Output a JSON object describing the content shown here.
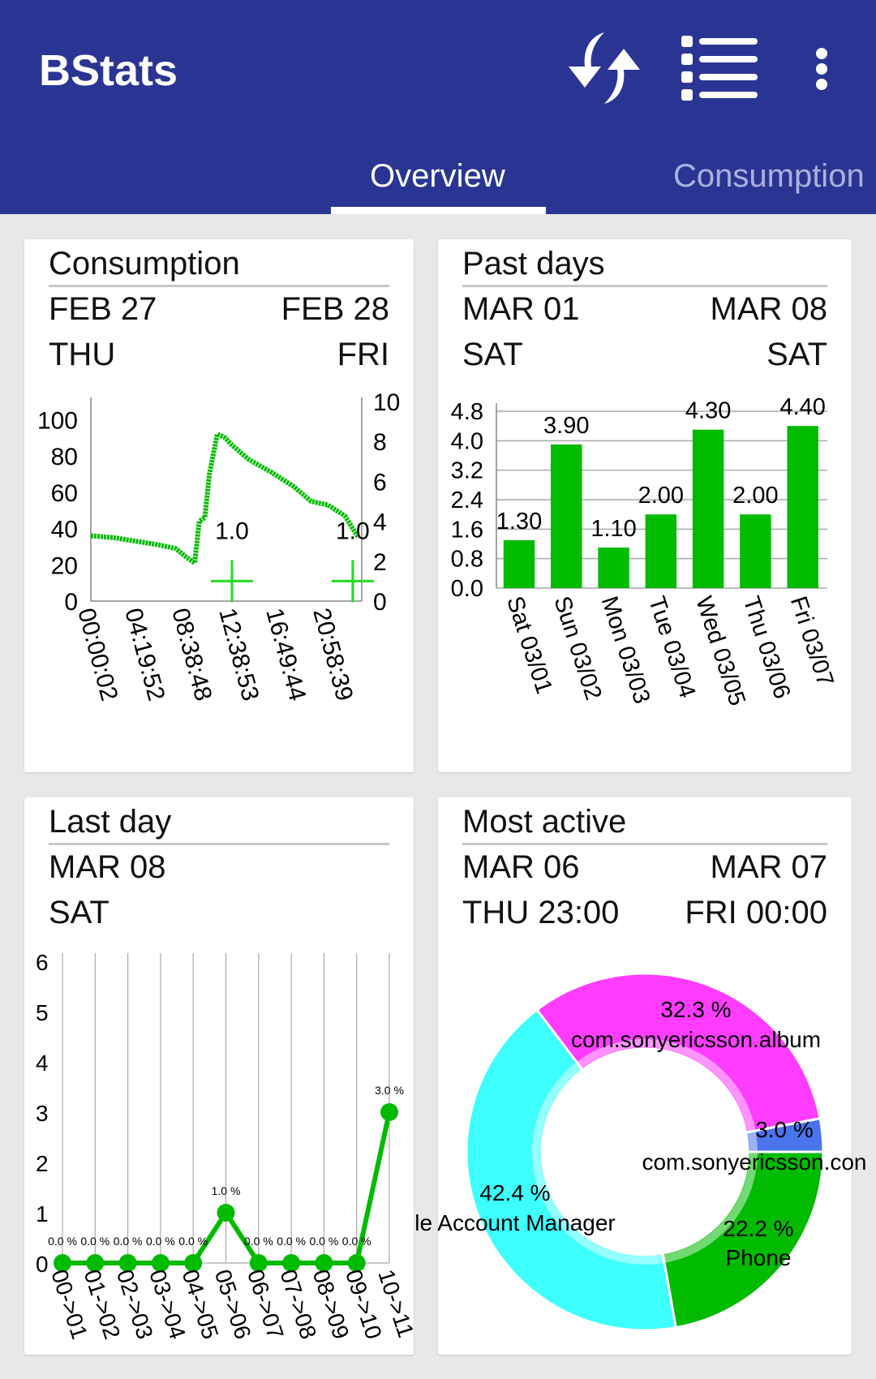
{
  "app": {
    "title": "BStats"
  },
  "toolbar": {
    "icons": [
      "sync-icon",
      "list-icon",
      "more-vert-icon"
    ]
  },
  "tabs": [
    {
      "label": "Overview",
      "active": true
    },
    {
      "label": "Consumption",
      "active": false
    }
  ],
  "colors": {
    "appbar": "#2a3593",
    "green": "#00bb00",
    "cyan": "#3dfffc",
    "magenta": "#ff3cff",
    "blue": "#4a74ee"
  },
  "cards": {
    "consumption": {
      "title": "Consumption",
      "start_date": "FEB 27",
      "end_date": "FEB 28",
      "start_day": "THU",
      "end_day": "FRI"
    },
    "past_days": {
      "title": "Past days",
      "start_date": "MAR 01",
      "end_date": "MAR 08",
      "start_day": "SAT",
      "end_day": "SAT"
    },
    "last_day": {
      "title": "Last day",
      "date": "MAR 08",
      "day": "SAT"
    },
    "most_active": {
      "title": "Most active",
      "start_date": "MAR 06",
      "end_date": "MAR 07",
      "start_time": "THU 23:00",
      "end_time": "FRI 00:00"
    }
  },
  "chart_data": [
    {
      "type": "line",
      "left_ylim": [
        0,
        110
      ],
      "left_yticks": [
        "0",
        "20",
        "40",
        "60",
        "80",
        "100"
      ],
      "right_ylim": [
        0,
        10
      ],
      "right_yticks": [
        "0",
        "2",
        "4",
        "6",
        "8",
        "10"
      ],
      "xticks": [
        "00:00:02",
        "04:19:52",
        "08:38:48",
        "12:38:53",
        "16:49:44",
        "20:58:39"
      ],
      "x_hours": [
        0,
        2,
        4,
        6,
        7.5,
        8.5,
        9.2,
        9.6,
        10.1,
        10.5,
        11.2,
        11.9,
        12.5,
        14,
        16,
        18,
        19.5,
        21,
        22.5,
        23.7
      ],
      "battery": [
        36,
        35,
        33,
        31,
        29,
        24,
        21,
        44,
        46,
        70,
        92,
        90,
        86,
        78,
        71,
        63,
        55,
        53,
        47,
        35
      ],
      "markers": [
        {
          "x_hour": 12.5,
          "value": 1.0,
          "label": "1.0"
        },
        {
          "x_hour": 23.2,
          "value": 1.0,
          "label": "1.0"
        }
      ]
    },
    {
      "type": "bar",
      "categories": [
        "Sat 03/01",
        "Sun 03/02",
        "Mon 03/03",
        "Tue 03/04",
        "Wed 03/05",
        "Thu 03/06",
        "Fri 03/07"
      ],
      "values": [
        1.3,
        3.9,
        1.1,
        2.0,
        4.3,
        2.0,
        4.4
      ],
      "labels": [
        "1.30",
        "3.90",
        "1.10",
        "2.00",
        "4.30",
        "2.00",
        "4.40"
      ],
      "yticks": [
        "0.0",
        "0.8",
        "1.6",
        "2.4",
        "3.2",
        "4.0",
        "4.8"
      ],
      "ylim": [
        0,
        4.8
      ],
      "grid": true
    },
    {
      "type": "line",
      "categories": [
        "00->01",
        "01->02",
        "02->03",
        "03->04",
        "04->05",
        "05->06",
        "06->07",
        "07->08",
        "08->09",
        "09->10",
        "10->11"
      ],
      "values": [
        0,
        0,
        0,
        0,
        0,
        1,
        0,
        0,
        0,
        0,
        3
      ],
      "labels": [
        "0.0 %",
        "0.0 %",
        "0.0 %",
        "0.0 %",
        "0.0 %",
        "1.0 %",
        "0.0 %",
        "0.0 %",
        "0.0 %",
        "0.0 %",
        "3.0 %"
      ],
      "yticks": [
        "0",
        "1",
        "2",
        "3",
        "4",
        "5",
        "6"
      ],
      "ylim": [
        0,
        6
      ],
      "grid": true
    },
    {
      "type": "pie",
      "slices": [
        {
          "label": "Phone",
          "percent": "22.2 %",
          "value": 22.2,
          "color": "#00bb00"
        },
        {
          "label": "le Account Manager",
          "percent": "42.4 %",
          "value": 42.4,
          "color": "#3dfffc"
        },
        {
          "label": "com.sonyericsson.album",
          "percent": "32.3 %",
          "value": 32.3,
          "color": "#ff3cff"
        },
        {
          "label": "com.sonyericsson.con",
          "percent": "3.0 %",
          "value": 3.0,
          "color": "#4a74ee"
        }
      ]
    }
  ]
}
